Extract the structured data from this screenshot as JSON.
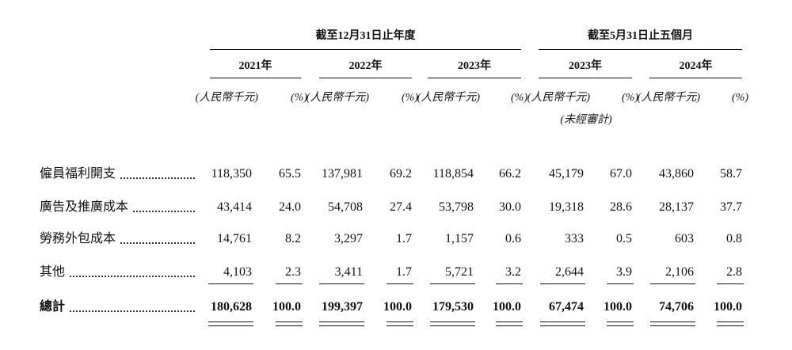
{
  "table": {
    "group_headers": [
      "截至12月31日止年度",
      "截至5月31日止五個月"
    ],
    "years": [
      "2021年",
      "2022年",
      "2023年",
      "2023年",
      "2024年"
    ],
    "unit_labels": [
      "(人民幣千元)",
      "(%)",
      "(人民幣千元)",
      "(%)",
      "(人民幣千元)",
      "(%)",
      "(人民幣千元)",
      "(%)",
      "(人民幣千元)",
      "(%)"
    ],
    "unaudited_note": "(未經審計)",
    "rows": [
      {
        "label": "僱員福利開支",
        "cells": [
          "118,350",
          "65.5",
          "137,981",
          "69.2",
          "118,854",
          "66.2",
          "45,179",
          "67.0",
          "43,860",
          "58.7"
        ]
      },
      {
        "label": "廣告及推廣成本",
        "cells": [
          "43,414",
          "24.0",
          "54,708",
          "27.4",
          "53,798",
          "30.0",
          "19,318",
          "28.6",
          "28,137",
          "37.7"
        ]
      },
      {
        "label": "勞務外包成本",
        "cells": [
          "14,761",
          "8.2",
          "3,297",
          "1.7",
          "1,157",
          "0.6",
          "333",
          "0.5",
          "603",
          "0.8"
        ]
      },
      {
        "label": "其他",
        "cells": [
          "4,103",
          "2.3",
          "3,411",
          "1.7",
          "5,721",
          "3.2",
          "2,644",
          "3.9",
          "2,106",
          "2.8"
        ]
      },
      {
        "label": "總計",
        "cells": [
          "180,628",
          "100.0",
          "199,397",
          "100.0",
          "179,530",
          "100.0",
          "67,474",
          "100.0",
          "74,706",
          "100.0"
        ]
      }
    ]
  }
}
